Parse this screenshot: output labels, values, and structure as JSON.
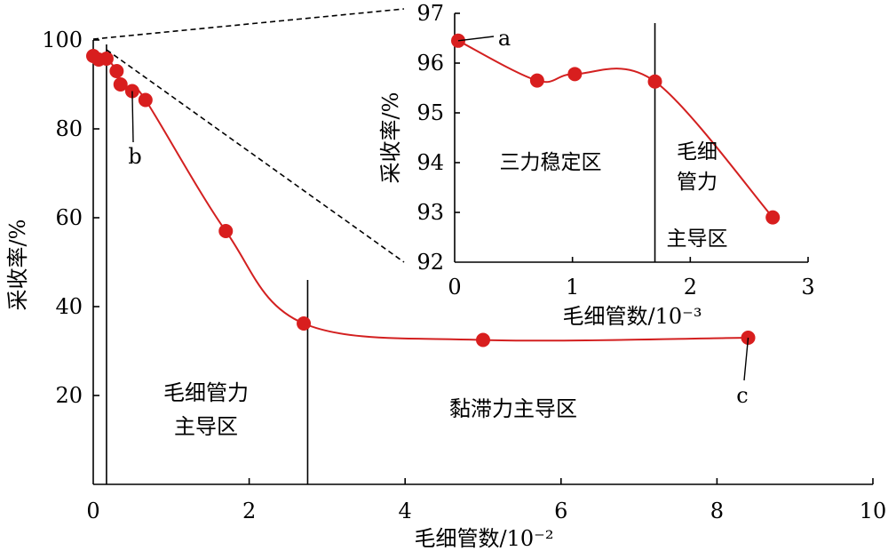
{
  "colors": {
    "series": "#d32020",
    "marker": "#d81e1e",
    "axis": "#000000"
  },
  "chart_data": [
    {
      "type": "line",
      "xlabel": "毛细管数/10⁻²",
      "ylabel": "采收率/%",
      "xlim": [
        0,
        10
      ],
      "ylim": [
        0,
        100
      ],
      "xticks": [
        "0",
        "2",
        "4",
        "6",
        "8",
        "10"
      ],
      "yticks": [
        "20",
        "40",
        "60",
        "80",
        "100"
      ],
      "x_tick_values": [
        0,
        2,
        4,
        6,
        8,
        10
      ],
      "y_tick_values": [
        20,
        40,
        60,
        80,
        100
      ],
      "grid": false,
      "series": [
        {
          "x": [
            0.0,
            0.07,
            0.17,
            0.3,
            0.35,
            0.5,
            0.67,
            1.7,
            2.7,
            5.0,
            8.4
          ],
          "y": [
            96.4,
            95.6,
            95.8,
            93.0,
            90.0,
            88.5,
            86.5,
            57.0,
            36.2,
            32.5,
            33.0
          ]
        }
      ],
      "dividers_x": [
        0.17,
        2.75
      ],
      "region_labels": [
        {
          "text": "毛细管力",
          "line2": "主导区"
        },
        {
          "text": "黏滞力主导区"
        }
      ],
      "point_labels": [
        {
          "text": "b",
          "x": 0.5,
          "y": 88.5
        },
        {
          "text": "c",
          "x": 8.4,
          "y": 33.0
        }
      ]
    },
    {
      "type": "line",
      "xlabel": "毛细管数/10⁻³",
      "ylabel": "采收率/%",
      "xlim": [
        0,
        3
      ],
      "ylim": [
        92,
        97
      ],
      "xticks": [
        "0",
        "1",
        "2",
        "3"
      ],
      "yticks": [
        "92",
        "93",
        "94",
        "95",
        "96",
        "97"
      ],
      "x_tick_values": [
        0,
        1,
        2,
        3
      ],
      "y_tick_values": [
        92,
        93,
        94,
        95,
        96,
        97
      ],
      "grid": false,
      "series": [
        {
          "x": [
            0.03,
            0.7,
            1.02,
            1.7,
            2.7
          ],
          "y": [
            96.45,
            95.65,
            95.78,
            95.63,
            92.9
          ]
        }
      ],
      "dividers_x": [
        1.7
      ],
      "region_labels": [
        {
          "text": "三力稳定区"
        },
        {
          "text": "毛细",
          "line2": "管力",
          "line3": "主导区"
        }
      ],
      "point_labels": [
        {
          "text": "a",
          "x": 0.03,
          "y": 96.45
        }
      ]
    }
  ]
}
